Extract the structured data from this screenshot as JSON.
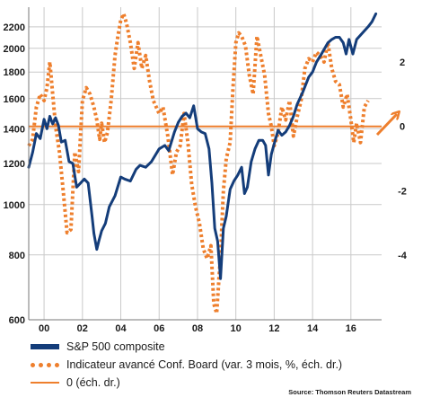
{
  "chart_data": {
    "type": "line",
    "x_tick_labels": [
      "00",
      "02",
      "04",
      "06",
      "08",
      "10",
      "12",
      "14",
      "16"
    ],
    "x_tick_years": [
      2000,
      2002,
      2004,
      2006,
      2008,
      2010,
      2012,
      2014,
      2016
    ],
    "xlim": [
      1999.2,
      2017.6
    ],
    "left_axis": {
      "scale": "log",
      "range": [
        600,
        2400
      ],
      "ticks": [
        600,
        800,
        1000,
        1200,
        1400,
        1600,
        1800,
        2000,
        2200
      ]
    },
    "right_axis": {
      "scale": "linear",
      "range": [
        -6,
        3.7
      ],
      "ticks": [
        2,
        0,
        -2,
        -4
      ]
    },
    "grid": true,
    "legend_position": "bottom",
    "series": [
      {
        "name": "S&P 500 composite",
        "axis": "left",
        "color": "#143d7a",
        "x": [
          1999.2,
          1999.4,
          1999.6,
          1999.8,
          2000.0,
          2000.15,
          2000.3,
          2000.45,
          2000.6,
          2000.75,
          2000.9,
          2001.1,
          2001.3,
          2001.5,
          2001.7,
          2001.9,
          2002.1,
          2002.3,
          2002.5,
          2002.6,
          2002.75,
          2002.85,
          2003.0,
          2003.2,
          2003.4,
          2003.7,
          2004.0,
          2004.2,
          2004.5,
          2004.8,
          2005.0,
          2005.3,
          2005.6,
          2006.0,
          2006.3,
          2006.5,
          2006.8,
          2007.0,
          2007.2,
          2007.4,
          2007.6,
          2007.8,
          2008.0,
          2008.2,
          2008.4,
          2008.6,
          2008.75,
          2008.9,
          2009.05,
          2009.2,
          2009.35,
          2009.5,
          2009.7,
          2009.9,
          2010.1,
          2010.3,
          2010.45,
          2010.6,
          2010.8,
          2011.0,
          2011.2,
          2011.4,
          2011.55,
          2011.7,
          2011.85,
          2012.0,
          2012.2,
          2012.4,
          2012.6,
          2012.8,
          2013.0,
          2013.2,
          2013.5,
          2013.8,
          2014.0,
          2014.2,
          2014.5,
          2014.8,
          2015.0,
          2015.2,
          2015.4,
          2015.6,
          2015.75,
          2015.9,
          2016.1,
          2016.3,
          2016.5,
          2016.7,
          2016.9,
          2017.1,
          2017.3
        ],
        "values": [
          1180,
          1260,
          1370,
          1340,
          1460,
          1400,
          1480,
          1430,
          1470,
          1420,
          1320,
          1330,
          1210,
          1200,
          1080,
          1100,
          1120,
          1100,
          950,
          880,
          820,
          850,
          890,
          920,
          990,
          1040,
          1130,
          1120,
          1110,
          1170,
          1190,
          1180,
          1210,
          1280,
          1300,
          1270,
          1380,
          1440,
          1480,
          1500,
          1470,
          1550,
          1400,
          1380,
          1370,
          1280,
          1100,
          900,
          850,
          720,
          900,
          950,
          1070,
          1110,
          1140,
          1180,
          1050,
          1080,
          1210,
          1280,
          1330,
          1330,
          1300,
          1140,
          1250,
          1310,
          1390,
          1360,
          1380,
          1420,
          1480,
          1560,
          1650,
          1760,
          1800,
          1880,
          1960,
          2050,
          2080,
          2100,
          2100,
          2050,
          1950,
          2080,
          1950,
          2080,
          2120,
          2160,
          2200,
          2250,
          2330
        ]
      },
      {
        "name": "Indicateur avancé Conf. Board (var. 3 mois, %, éch. dr.)",
        "axis": "right",
        "color": "#ee7f2d",
        "x": [
          1999.2,
          1999.4,
          1999.6,
          1999.8,
          2000.0,
          2000.15,
          2000.3,
          2000.45,
          2000.6,
          2000.8,
          2001.0,
          2001.2,
          2001.4,
          2001.6,
          2001.8,
          2002.0,
          2002.2,
          2002.4,
          2002.6,
          2002.75,
          2002.9,
          2003.0,
          2003.15,
          2003.3,
          2003.5,
          2003.7,
          2003.85,
          2004.0,
          2004.15,
          2004.3,
          2004.5,
          2004.7,
          2004.9,
          2005.1,
          2005.3,
          2005.5,
          2005.7,
          2006.0,
          2006.2,
          2006.45,
          2006.7,
          2006.9,
          2007.1,
          2007.3,
          2007.5,
          2007.7,
          2007.9,
          2008.1,
          2008.3,
          2008.5,
          2008.7,
          2008.85,
          2009.0,
          2009.2,
          2009.35,
          2009.5,
          2009.7,
          2009.85,
          2010.0,
          2010.15,
          2010.3,
          2010.5,
          2010.7,
          2010.9,
          2011.1,
          2011.3,
          2011.5,
          2011.7,
          2011.85,
          2012.0,
          2012.2,
          2012.4,
          2012.6,
          2012.8,
          2013.0,
          2013.2,
          2013.4,
          2013.6,
          2013.8,
          2014.0,
          2014.2,
          2014.4,
          2014.6,
          2014.8,
          2015.0,
          2015.2,
          2015.4,
          2015.6,
          2015.8,
          2016.0,
          2016.15,
          2016.3,
          2016.5,
          2016.7,
          2016.9
        ],
        "values": [
          -0.6,
          -0.4,
          0.6,
          1.0,
          0.8,
          1.2,
          2.0,
          1.0,
          0.0,
          -0.8,
          -2.0,
          -3.3,
          -3.2,
          -0.8,
          -1.4,
          0.8,
          1.2,
          1.0,
          0.6,
          0.2,
          -0.4,
          0.1,
          -0.5,
          -0.2,
          0.8,
          2.2,
          2.8,
          3.3,
          3.5,
          3.2,
          2.6,
          1.8,
          2.6,
          1.8,
          2.2,
          1.4,
          0.8,
          0.4,
          0.6,
          -0.3,
          -1.5,
          -0.8,
          -0.6,
          0.4,
          -0.5,
          -1.8,
          -2.5,
          -3.0,
          -3.8,
          -4.1,
          -3.7,
          -5.5,
          -5.8,
          -4.0,
          -2.0,
          -1.0,
          -0.5,
          1.2,
          2.6,
          2.9,
          2.8,
          2.5,
          1.6,
          1.0,
          2.8,
          2.2,
          1.6,
          0.4,
          0.0,
          -0.6,
          -0.2,
          0.6,
          0.2,
          0.8,
          -0.3,
          0.3,
          0.8,
          1.8,
          2.1,
          2.0,
          2.3,
          2.2,
          2.0,
          2.6,
          1.8,
          1.4,
          1.3,
          0.6,
          1.0,
          0.2,
          -0.5,
          0.1,
          -0.5,
          0.6,
          0.8
        ]
      },
      {
        "name": "0 (éch. dr.)",
        "axis": "right",
        "color": "#ee7f2d",
        "x": [
          1999.2,
          2017.6
        ],
        "values": [
          0,
          0
        ]
      }
    ],
    "source": "Source: Thomson Reuters Datastream"
  }
}
